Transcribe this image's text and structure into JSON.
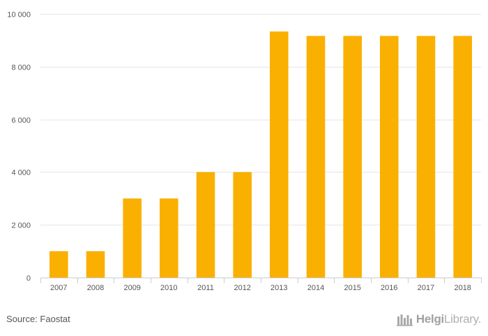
{
  "chart_data": {
    "type": "bar",
    "categories": [
      "2007",
      "2008",
      "2009",
      "2010",
      "2011",
      "2012",
      "2013",
      "2014",
      "2015",
      "2016",
      "2017",
      "2018"
    ],
    "values": [
      1000,
      1000,
      3000,
      3000,
      4000,
      4000,
      9333,
      9167,
      9167,
      9167,
      9167,
      9167
    ],
    "title": "",
    "xlabel": "",
    "ylabel": "",
    "ylim": [
      0,
      10000
    ],
    "yticks": [
      0,
      2000,
      4000,
      6000,
      8000,
      10000
    ],
    "ytick_labels": [
      "0",
      "2 000",
      "4 000",
      "6 000",
      "8 000",
      "10 000"
    ],
    "grid": true,
    "bar_color": "#FAB000",
    "grid_color": "#E6E6E6"
  },
  "footer": {
    "source": "Source: Faostat",
    "logo_part1": "Helgi",
    "logo_part2": "Library."
  }
}
